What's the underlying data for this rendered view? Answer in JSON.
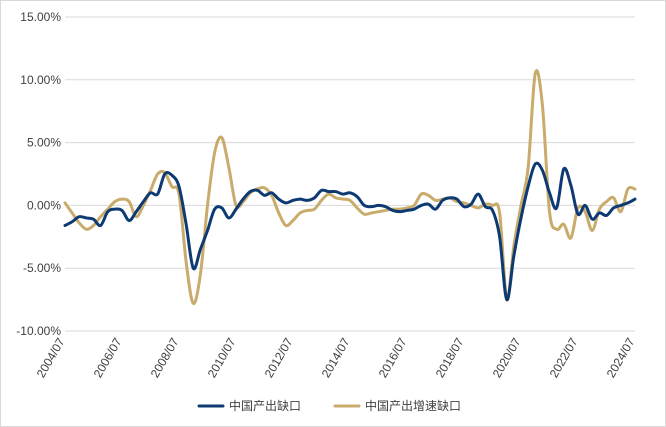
{
  "chart_data": {
    "type": "line",
    "title": "",
    "xlabel": "",
    "ylabel": "",
    "ylim": [
      -10,
      15
    ],
    "y_ticks": [
      -10,
      -5,
      0,
      5,
      10,
      15
    ],
    "y_tick_labels": [
      "-10.00%",
      "-5.00%",
      "0.00%",
      "5.00%",
      "10.00%",
      "15.00%"
    ],
    "x_range": [
      "2004-07",
      "2024-07"
    ],
    "x_ticks": [
      "2004/07",
      "2006/07",
      "2008/07",
      "2010/07",
      "2012/07",
      "2014/07",
      "2016/07",
      "2018/07",
      "2020/07",
      "2022/07",
      "2024/07"
    ],
    "grid": "horizontal",
    "legend_position": "bottom",
    "series": [
      {
        "name": "中国产出缺口",
        "color": "#0e3a73",
        "points": [
          [
            "2004-07",
            -1.6
          ],
          [
            "2004-10",
            -1.3
          ],
          [
            "2005-01",
            -0.9
          ],
          [
            "2005-04",
            -1.0
          ],
          [
            "2005-07",
            -1.1
          ],
          [
            "2005-10",
            -1.6
          ],
          [
            "2006-01",
            -0.5
          ],
          [
            "2006-04",
            -0.3
          ],
          [
            "2006-07",
            -0.4
          ],
          [
            "2006-10",
            -1.2
          ],
          [
            "2007-01",
            -0.5
          ],
          [
            "2007-04",
            0.3
          ],
          [
            "2007-07",
            1.0
          ],
          [
            "2007-10",
            0.9
          ],
          [
            "2008-01",
            2.5
          ],
          [
            "2008-04",
            2.4
          ],
          [
            "2008-07",
            1.5
          ],
          [
            "2008-10",
            -1.5
          ],
          [
            "2009-01",
            -5.0
          ],
          [
            "2009-04",
            -3.5
          ],
          [
            "2009-07",
            -2.0
          ],
          [
            "2009-10",
            -0.3
          ],
          [
            "2010-01",
            -0.2
          ],
          [
            "2010-04",
            -1.0
          ],
          [
            "2010-07",
            -0.3
          ],
          [
            "2010-10",
            0.5
          ],
          [
            "2011-01",
            1.1
          ],
          [
            "2011-04",
            1.2
          ],
          [
            "2011-07",
            0.8
          ],
          [
            "2011-10",
            1.0
          ],
          [
            "2012-01",
            0.5
          ],
          [
            "2012-04",
            0.2
          ],
          [
            "2012-07",
            0.4
          ],
          [
            "2012-10",
            0.5
          ],
          [
            "2013-01",
            0.4
          ],
          [
            "2013-04",
            0.6
          ],
          [
            "2013-07",
            1.2
          ],
          [
            "2013-10",
            1.1
          ],
          [
            "2014-01",
            1.1
          ],
          [
            "2014-04",
            0.9
          ],
          [
            "2014-07",
            1.0
          ],
          [
            "2014-10",
            0.7
          ],
          [
            "2015-01",
            0.0
          ],
          [
            "2015-04",
            -0.1
          ],
          [
            "2015-07",
            0.0
          ],
          [
            "2015-10",
            -0.1
          ],
          [
            "2016-01",
            -0.4
          ],
          [
            "2016-04",
            -0.5
          ],
          [
            "2016-07",
            -0.4
          ],
          [
            "2016-10",
            -0.3
          ],
          [
            "2017-01",
            0.0
          ],
          [
            "2017-04",
            0.1
          ],
          [
            "2017-07",
            -0.3
          ],
          [
            "2017-10",
            0.4
          ],
          [
            "2018-01",
            0.6
          ],
          [
            "2018-04",
            0.5
          ],
          [
            "2018-07",
            -0.1
          ],
          [
            "2018-10",
            0.1
          ],
          [
            "2019-01",
            0.9
          ],
          [
            "2019-04",
            -0.1
          ],
          [
            "2019-07",
            -0.4
          ],
          [
            "2019-10",
            -2.5
          ],
          [
            "2020-01",
            -7.5
          ],
          [
            "2020-04",
            -4.0
          ],
          [
            "2020-07",
            -1.0
          ],
          [
            "2020-10",
            1.5
          ],
          [
            "2021-01",
            3.3
          ],
          [
            "2021-04",
            2.8
          ],
          [
            "2021-07",
            1.0
          ],
          [
            "2021-10",
            -0.2
          ],
          [
            "2022-01",
            2.9
          ],
          [
            "2022-04",
            1.6
          ],
          [
            "2022-07",
            -0.7
          ],
          [
            "2022-10",
            0.0
          ],
          [
            "2023-01",
            -1.1
          ],
          [
            "2023-04",
            -0.6
          ],
          [
            "2023-07",
            -0.8
          ],
          [
            "2023-10",
            -0.2
          ],
          [
            "2024-01",
            0.0
          ],
          [
            "2024-04",
            0.2
          ],
          [
            "2024-07",
            0.5
          ]
        ]
      },
      {
        "name": "中国产出增速缺口",
        "color": "#c9ab6c",
        "points": [
          [
            "2004-07",
            0.2
          ],
          [
            "2004-10",
            -0.6
          ],
          [
            "2005-01",
            -1.4
          ],
          [
            "2005-04",
            -1.9
          ],
          [
            "2005-07",
            -1.6
          ],
          [
            "2005-10",
            -0.9
          ],
          [
            "2006-01",
            -0.3
          ],
          [
            "2006-04",
            0.3
          ],
          [
            "2006-07",
            0.5
          ],
          [
            "2006-10",
            0.3
          ],
          [
            "2007-01",
            -0.9
          ],
          [
            "2007-04",
            0.0
          ],
          [
            "2007-07",
            1.2
          ],
          [
            "2007-10",
            2.5
          ],
          [
            "2008-01",
            2.6
          ],
          [
            "2008-04",
            1.5
          ],
          [
            "2008-07",
            0.9
          ],
          [
            "2008-10",
            -4.5
          ],
          [
            "2009-01",
            -7.8
          ],
          [
            "2009-04",
            -5.5
          ],
          [
            "2009-07",
            0.0
          ],
          [
            "2009-10",
            4.2
          ],
          [
            "2010-01",
            5.4
          ],
          [
            "2010-04",
            3.0
          ],
          [
            "2010-07",
            0.0
          ],
          [
            "2010-10",
            0.3
          ],
          [
            "2011-01",
            1.0
          ],
          [
            "2011-04",
            1.3
          ],
          [
            "2011-07",
            1.4
          ],
          [
            "2011-10",
            0.8
          ],
          [
            "2012-01",
            -0.6
          ],
          [
            "2012-04",
            -1.6
          ],
          [
            "2012-07",
            -1.2
          ],
          [
            "2012-10",
            -0.6
          ],
          [
            "2013-01",
            -0.4
          ],
          [
            "2013-04",
            -0.3
          ],
          [
            "2013-07",
            0.4
          ],
          [
            "2013-10",
            0.9
          ],
          [
            "2014-01",
            0.6
          ],
          [
            "2014-04",
            0.5
          ],
          [
            "2014-07",
            0.4
          ],
          [
            "2014-10",
            -0.2
          ],
          [
            "2015-01",
            -0.7
          ],
          [
            "2015-04",
            -0.6
          ],
          [
            "2015-07",
            -0.5
          ],
          [
            "2015-10",
            -0.4
          ],
          [
            "2016-01",
            -0.3
          ],
          [
            "2016-04",
            -0.3
          ],
          [
            "2016-07",
            -0.2
          ],
          [
            "2016-10",
            0.0
          ],
          [
            "2017-01",
            0.9
          ],
          [
            "2017-04",
            0.8
          ],
          [
            "2017-07",
            0.4
          ],
          [
            "2017-10",
            0.5
          ],
          [
            "2018-01",
            0.6
          ],
          [
            "2018-04",
            0.3
          ],
          [
            "2018-07",
            0.2
          ],
          [
            "2018-10",
            0.0
          ],
          [
            "2019-01",
            -0.2
          ],
          [
            "2019-04",
            0.1
          ],
          [
            "2019-07",
            0.0
          ],
          [
            "2019-10",
            -0.6
          ],
          [
            "2020-01",
            -7.5
          ],
          [
            "2020-04",
            -3.2
          ],
          [
            "2020-07",
            0.0
          ],
          [
            "2020-10",
            3.0
          ],
          [
            "2021-01",
            10.5
          ],
          [
            "2021-04",
            8.0
          ],
          [
            "2021-07",
            -0.5
          ],
          [
            "2021-10",
            -1.9
          ],
          [
            "2022-01",
            -1.5
          ],
          [
            "2022-04",
            -2.6
          ],
          [
            "2022-07",
            -0.2
          ],
          [
            "2022-10",
            -0.5
          ],
          [
            "2023-01",
            -2.0
          ],
          [
            "2023-04",
            -0.3
          ],
          [
            "2023-07",
            0.3
          ],
          [
            "2023-10",
            0.6
          ],
          [
            "2024-01",
            -0.5
          ],
          [
            "2024-04",
            1.3
          ],
          [
            "2024-07",
            1.3
          ]
        ]
      }
    ]
  }
}
